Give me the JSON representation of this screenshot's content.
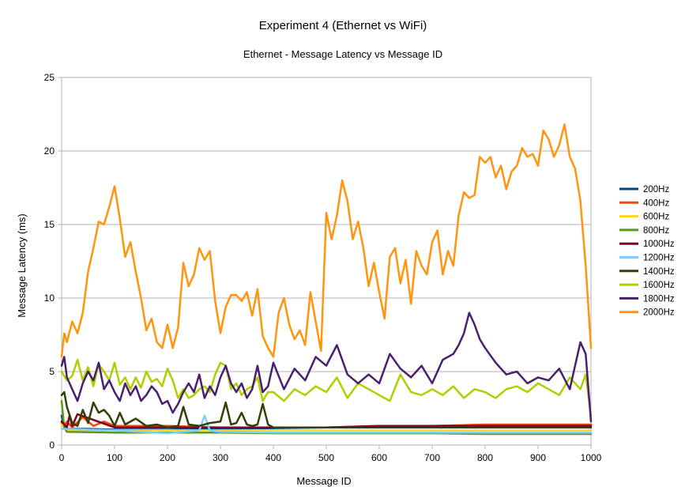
{
  "chart_data": {
    "type": "line",
    "title": "Experiment 4 (Ethernet vs WiFi)",
    "subtitle": "Ethernet - Message Latency vs Message ID",
    "xlabel": "Message ID",
    "ylabel": "Message Latency (ms)",
    "xlim": [
      0,
      1000
    ],
    "ylim": [
      0,
      25
    ],
    "x_ticks": [
      0,
      100,
      200,
      300,
      400,
      500,
      600,
      700,
      800,
      900,
      1000
    ],
    "y_ticks": [
      0,
      5,
      10,
      15,
      20,
      25
    ],
    "grid": "horizontal",
    "legend_position": "right",
    "series": [
      {
        "name": "200Hz",
        "color": "#004586",
        "x": [
          0,
          5,
          10,
          50,
          100,
          200,
          300,
          400,
          500,
          600,
          700,
          800,
          900,
          1000
        ],
        "values": [
          2.0,
          1.2,
          1.1,
          1.1,
          1.05,
          1.05,
          1.1,
          1.15,
          1.2,
          1.25,
          1.3,
          1.3,
          1.3,
          1.3
        ]
      },
      {
        "name": "400Hz",
        "color": "#ff420e",
        "x": [
          0,
          5,
          10,
          20,
          40,
          60,
          80,
          100,
          200,
          300,
          400,
          500,
          600,
          700,
          800,
          900,
          1000
        ],
        "values": [
          1.5,
          1.3,
          1.6,
          1.2,
          1.9,
          1.3,
          1.6,
          1.3,
          1.3,
          1.2,
          1.2,
          1.2,
          1.3,
          1.3,
          1.4,
          1.4,
          1.4
        ]
      },
      {
        "name": "600Hz",
        "color": "#ffd320",
        "x": [
          0,
          10,
          100,
          200,
          300,
          400,
          500,
          600,
          700,
          800,
          900,
          1000
        ],
        "values": [
          1.4,
          1.0,
          1.0,
          1.0,
          1.0,
          1.0,
          1.0,
          1.0,
          1.0,
          1.0,
          1.0,
          1.0
        ]
      },
      {
        "name": "800Hz",
        "color": "#579d1c",
        "x": [
          0,
          5,
          10,
          100,
          200,
          300,
          400,
          500,
          600,
          700,
          800,
          900,
          1000
        ],
        "values": [
          3.0,
          1.2,
          0.9,
          0.85,
          0.85,
          0.85,
          0.8,
          0.8,
          0.8,
          0.8,
          0.75,
          0.75,
          0.75
        ]
      },
      {
        "name": "1000Hz",
        "color": "#7e0021",
        "x": [
          0,
          10,
          15,
          20,
          30,
          100,
          200,
          300,
          400,
          500,
          600,
          700,
          800,
          900,
          1000
        ],
        "values": [
          1.6,
          1.2,
          2.0,
          1.3,
          2.1,
          1.2,
          1.2,
          1.2,
          1.2,
          1.2,
          1.3,
          1.3,
          1.3,
          1.3,
          1.3
        ]
      },
      {
        "name": "1200Hz",
        "color": "#83caff",
        "x": [
          0,
          100,
          150,
          200,
          260,
          270,
          280,
          300,
          400,
          500,
          600,
          700,
          800,
          900,
          1000
        ],
        "values": [
          1.1,
          1.0,
          0.9,
          0.8,
          1.0,
          2.0,
          1.0,
          0.9,
          0.85,
          0.85,
          0.85,
          0.85,
          0.85,
          0.85,
          0.85
        ]
      },
      {
        "name": "1400Hz",
        "color": "#314004",
        "x": [
          0,
          5,
          10,
          20,
          30,
          40,
          50,
          60,
          70,
          80,
          90,
          100,
          110,
          120,
          140,
          160,
          180,
          200,
          220,
          230,
          240,
          260,
          280,
          300,
          310,
          320,
          330,
          340,
          350,
          360,
          370,
          380,
          390,
          400,
          450,
          500,
          600,
          700,
          800,
          900,
          1000
        ],
        "values": [
          3.4,
          3.6,
          2.6,
          1.5,
          1.3,
          2.4,
          1.5,
          2.9,
          2.2,
          2.4,
          2.0,
          1.3,
          2.2,
          1.4,
          1.8,
          1.3,
          1.4,
          1.2,
          1.3,
          2.6,
          1.4,
          1.3,
          1.5,
          1.6,
          2.9,
          1.4,
          1.5,
          2.2,
          1.4,
          1.3,
          1.4,
          2.8,
          1.4,
          1.2,
          1.2,
          1.2,
          1.2,
          1.2,
          1.2,
          1.2,
          1.2
        ]
      },
      {
        "name": "1600Hz",
        "color": "#aecf00",
        "x": [
          0,
          10,
          20,
          30,
          40,
          50,
          60,
          70,
          80,
          90,
          100,
          110,
          120,
          130,
          140,
          150,
          160,
          170,
          180,
          190,
          200,
          210,
          220,
          230,
          240,
          250,
          260,
          270,
          280,
          290,
          300,
          310,
          320,
          330,
          340,
          350,
          360,
          370,
          380,
          390,
          400,
          420,
          440,
          460,
          480,
          500,
          520,
          540,
          560,
          580,
          600,
          620,
          640,
          660,
          680,
          700,
          720,
          740,
          760,
          780,
          800,
          820,
          840,
          860,
          880,
          900,
          920,
          940,
          960,
          980,
          990,
          1000
        ],
        "values": [
          5.0,
          4.4,
          4.7,
          5.8,
          4.4,
          5.3,
          4.0,
          5.5,
          5.0,
          4.4,
          5.6,
          4.1,
          4.6,
          3.8,
          4.6,
          3.9,
          5.0,
          4.3,
          4.5,
          4.0,
          5.2,
          4.4,
          3.2,
          3.8,
          3.2,
          3.4,
          3.8,
          4.0,
          3.6,
          4.8,
          5.6,
          5.4,
          3.8,
          4.2,
          3.4,
          3.8,
          4.0,
          4.6,
          3.0,
          3.6,
          3.6,
          3.0,
          3.8,
          3.4,
          4.0,
          3.6,
          4.6,
          3.2,
          4.2,
          3.8,
          3.4,
          3.0,
          4.8,
          3.6,
          3.4,
          3.8,
          3.4,
          4.0,
          3.2,
          3.8,
          3.6,
          3.2,
          3.8,
          4.0,
          3.6,
          4.2,
          3.8,
          3.4,
          4.6,
          3.8,
          4.8,
          2.0
        ]
      },
      {
        "name": "1800Hz",
        "color": "#4b1f6f",
        "x": [
          0,
          5,
          10,
          20,
          30,
          40,
          50,
          60,
          70,
          80,
          90,
          100,
          110,
          120,
          130,
          140,
          150,
          160,
          170,
          180,
          190,
          200,
          210,
          220,
          230,
          240,
          250,
          260,
          270,
          280,
          290,
          300,
          310,
          320,
          330,
          340,
          350,
          360,
          370,
          380,
          390,
          400,
          420,
          440,
          460,
          480,
          500,
          520,
          540,
          560,
          580,
          600,
          620,
          640,
          660,
          680,
          700,
          720,
          740,
          750,
          760,
          770,
          780,
          790,
          800,
          820,
          840,
          860,
          880,
          900,
          920,
          940,
          960,
          980,
          990,
          1000
        ],
        "values": [
          5.4,
          6.0,
          4.6,
          3.8,
          3.0,
          4.2,
          5.0,
          4.4,
          5.6,
          3.8,
          4.4,
          3.6,
          3.0,
          4.2,
          3.4,
          4.0,
          3.0,
          3.4,
          4.0,
          3.6,
          2.8,
          3.0,
          2.2,
          2.8,
          3.6,
          4.2,
          3.6,
          4.8,
          3.2,
          4.0,
          3.4,
          4.6,
          5.4,
          4.2,
          3.6,
          4.2,
          3.2,
          3.8,
          5.4,
          3.6,
          4.0,
          5.6,
          3.8,
          5.2,
          4.4,
          6.0,
          5.4,
          6.8,
          4.8,
          4.2,
          4.8,
          4.2,
          6.2,
          5.2,
          4.6,
          5.4,
          4.2,
          5.8,
          6.2,
          6.8,
          7.6,
          9.0,
          8.2,
          7.2,
          6.6,
          5.6,
          4.8,
          5.0,
          4.2,
          4.6,
          4.4,
          5.2,
          3.8,
          7.0,
          6.2,
          1.6
        ]
      },
      {
        "name": "2000Hz",
        "color": "#ff950e",
        "x": [
          0,
          5,
          10,
          20,
          30,
          40,
          50,
          60,
          70,
          80,
          90,
          100,
          110,
          120,
          130,
          140,
          150,
          160,
          170,
          180,
          190,
          200,
          210,
          220,
          230,
          240,
          250,
          260,
          270,
          280,
          290,
          300,
          310,
          320,
          330,
          340,
          350,
          360,
          370,
          380,
          390,
          400,
          410,
          420,
          430,
          440,
          450,
          460,
          470,
          480,
          490,
          500,
          510,
          520,
          530,
          540,
          550,
          560,
          570,
          580,
          590,
          600,
          610,
          620,
          630,
          640,
          650,
          660,
          670,
          680,
          690,
          700,
          710,
          720,
          730,
          740,
          750,
          760,
          770,
          780,
          790,
          800,
          810,
          820,
          830,
          840,
          850,
          860,
          870,
          880,
          890,
          900,
          910,
          920,
          930,
          940,
          950,
          960,
          970,
          980,
          990,
          1000
        ],
        "values": [
          6.0,
          7.6,
          7.0,
          8.4,
          7.6,
          9.0,
          11.8,
          13.4,
          15.2,
          15.0,
          16.2,
          17.6,
          15.4,
          12.8,
          13.8,
          11.8,
          10.0,
          7.8,
          8.6,
          7.0,
          6.6,
          8.2,
          6.6,
          8.0,
          12.4,
          10.8,
          11.6,
          13.4,
          12.6,
          13.2,
          9.8,
          7.6,
          9.4,
          10.2,
          10.2,
          9.8,
          10.4,
          8.8,
          10.6,
          7.4,
          6.6,
          6.0,
          9.0,
          10.0,
          8.2,
          7.2,
          7.8,
          6.8,
          10.4,
          8.4,
          6.4,
          15.8,
          14.0,
          15.6,
          18.0,
          16.6,
          14.0,
          15.2,
          13.4,
          10.8,
          12.4,
          10.4,
          8.6,
          12.8,
          13.4,
          11.0,
          12.6,
          9.6,
          13.2,
          12.2,
          11.6,
          13.8,
          14.6,
          11.6,
          13.2,
          12.2,
          15.6,
          17.2,
          16.8,
          17.0,
          19.6,
          19.2,
          19.6,
          18.2,
          19.0,
          17.4,
          18.6,
          19.0,
          20.2,
          19.6,
          19.8,
          19.0,
          21.4,
          20.8,
          19.6,
          20.4,
          21.8,
          19.6,
          18.8,
          16.6,
          12.2,
          6.6
        ]
      }
    ]
  }
}
